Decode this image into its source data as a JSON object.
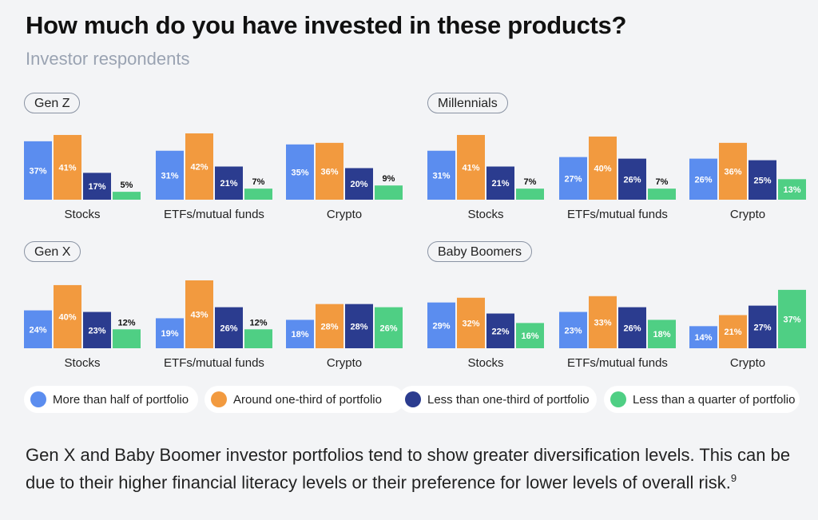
{
  "title": "How much do you have invested in these products?",
  "subtitle": "Investor respondents",
  "legend": [
    {
      "label": "More than half of portfolio",
      "color": "#5b8def"
    },
    {
      "label": "Around one-third of portfolio",
      "color": "#f29a3f"
    },
    {
      "label": "Less than one-third of portfolio",
      "color": "#2b3c8f"
    },
    {
      "label": "Less than a quarter of portfolio",
      "color": "#4fcf84"
    }
  ],
  "footer": {
    "text": "Gen X and Baby Boomer investor portfolios tend to show greater diversification levels. This can be due to their higher financial literacy levels or their preference for lower levels of overall risk.",
    "footnote": "9"
  },
  "chart_data": [
    {
      "type": "bar",
      "title": "Gen Z",
      "categories": [
        "Stocks",
        "ETFs/mutual funds",
        "Crypto"
      ],
      "series": [
        {
          "name": "More than half of portfolio",
          "values": [
            37,
            31,
            35
          ]
        },
        {
          "name": "Around one-third of portfolio",
          "values": [
            41,
            42,
            36
          ]
        },
        {
          "name": "Less than one-third of portfolio",
          "values": [
            17,
            21,
            20
          ]
        },
        {
          "name": "Less than a quarter of portfolio",
          "values": [
            5,
            7,
            9
          ]
        }
      ],
      "value_suffix": "%",
      "ylim": [
        0,
        43
      ]
    },
    {
      "type": "bar",
      "title": "Millennials",
      "categories": [
        "Stocks",
        "ETFs/mutual funds",
        "Crypto"
      ],
      "series": [
        {
          "name": "More than half of portfolio",
          "values": [
            31,
            27,
            26
          ]
        },
        {
          "name": "Around one-third of portfolio",
          "values": [
            41,
            40,
            36
          ]
        },
        {
          "name": "Less than one-third of portfolio",
          "values": [
            21,
            26,
            25
          ]
        },
        {
          "name": "Less than a quarter of portfolio",
          "values": [
            7,
            7,
            13
          ]
        }
      ],
      "value_suffix": "%",
      "ylim": [
        0,
        43
      ]
    },
    {
      "type": "bar",
      "title": "Gen X",
      "categories": [
        "Stocks",
        "ETFs/mutual funds",
        "Crypto"
      ],
      "series": [
        {
          "name": "More than half of portfolio",
          "values": [
            24,
            19,
            18
          ]
        },
        {
          "name": "Around one-third of portfolio",
          "values": [
            40,
            43,
            28
          ]
        },
        {
          "name": "Less than one-third of portfolio",
          "values": [
            23,
            26,
            28
          ]
        },
        {
          "name": "Less than a quarter of portfolio",
          "values": [
            12,
            12,
            26
          ]
        }
      ],
      "value_suffix": "%",
      "ylim": [
        0,
        43
      ]
    },
    {
      "type": "bar",
      "title": "Baby Boomers",
      "categories": [
        "Stocks",
        "ETFs/mutual funds",
        "Crypto"
      ],
      "series": [
        {
          "name": "More than half of portfolio",
          "values": [
            29,
            23,
            14
          ]
        },
        {
          "name": "Around one-third of portfolio",
          "values": [
            32,
            33,
            21
          ]
        },
        {
          "name": "Less than one-third of portfolio",
          "values": [
            22,
            26,
            27
          ]
        },
        {
          "name": "Less than a quarter of portfolio",
          "values": [
            16,
            18,
            37
          ]
        }
      ],
      "value_suffix": "%",
      "ylim": [
        0,
        43
      ]
    }
  ]
}
